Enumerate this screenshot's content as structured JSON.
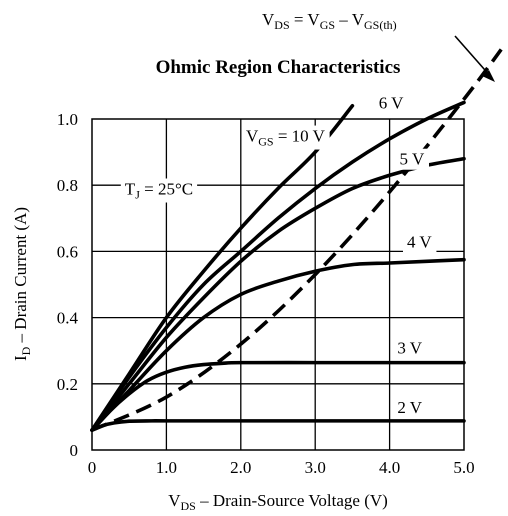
{
  "chart_data": {
    "type": "line",
    "title": "Ohmic Region Characteristics",
    "xlabel": "VDS – Drain-Source Voltage (V)",
    "ylabel": "ID – Drain Current (A)",
    "xlim": [
      0,
      5
    ],
    "ylim": [
      0,
      1.0
    ],
    "x_ticks": [
      "0",
      "1.0",
      "2.0",
      "3.0",
      "4.0",
      "5.0"
    ],
    "y_ticks": [
      "0",
      "0.2",
      "0.4",
      "0.6",
      "0.8",
      "1.0"
    ],
    "grid": true,
    "series": [
      {
        "name": "VGS = 10 V",
        "x": [
          0,
          0.5,
          1.0,
          1.5,
          2.0,
          2.5,
          3.0,
          3.5
        ],
        "y": [
          0.06,
          0.23,
          0.4,
          0.54,
          0.67,
          0.79,
          0.9,
          1.04
        ]
      },
      {
        "name": "6 V",
        "x": [
          0,
          0.5,
          1.0,
          1.5,
          2.0,
          2.5,
          3.0,
          3.5,
          4.0,
          4.5,
          5.0
        ],
        "y": [
          0.06,
          0.22,
          0.37,
          0.5,
          0.6,
          0.7,
          0.79,
          0.87,
          0.94,
          1.0,
          1.05
        ]
      },
      {
        "name": "5 V",
        "x": [
          0,
          0.5,
          1.0,
          1.5,
          2.0,
          2.5,
          3.0,
          3.5,
          4.0,
          4.5,
          5.0
        ],
        "y": [
          0.06,
          0.2,
          0.34,
          0.46,
          0.57,
          0.66,
          0.73,
          0.79,
          0.83,
          0.86,
          0.88
        ]
      },
      {
        "name": "4 V",
        "x": [
          0,
          0.5,
          1.0,
          1.5,
          2.0,
          2.5,
          3.0,
          3.5,
          4.0,
          4.5,
          5.0
        ],
        "y": [
          0.06,
          0.18,
          0.3,
          0.4,
          0.47,
          0.51,
          0.54,
          0.56,
          0.565,
          0.57,
          0.575
        ]
      },
      {
        "name": "3 V",
        "x": [
          0,
          0.25,
          0.5,
          0.75,
          1.0,
          1.25,
          1.5,
          1.75,
          2.0,
          3.0,
          4.0,
          5.0
        ],
        "y": [
          0.06,
          0.12,
          0.17,
          0.21,
          0.235,
          0.25,
          0.258,
          0.262,
          0.264,
          0.264,
          0.264,
          0.264
        ]
      },
      {
        "name": "2 V",
        "x": [
          0,
          0.15,
          0.3,
          0.5,
          0.8,
          1.0,
          2.0,
          3.0,
          4.0,
          5.0
        ],
        "y": [
          0.06,
          0.074,
          0.082,
          0.087,
          0.088,
          0.088,
          0.088,
          0.088,
          0.088,
          0.088
        ]
      }
    ],
    "boundary": {
      "name": "VDS = VGS – VGS(th)",
      "style": "dashed",
      "x": [
        0,
        1.0,
        2.0,
        3.0,
        4.0,
        5.0,
        5.5
      ],
      "y": [
        0.06,
        0.16,
        0.32,
        0.53,
        0.78,
        1.06,
        1.21
      ]
    },
    "annotations": [
      {
        "text": "6 V",
        "x": 4.02,
        "y": 1.05
      },
      {
        "text": "VGS = 10 V",
        "x": 2.6,
        "y": 0.95
      },
      {
        "text": "5 V",
        "x": 4.3,
        "y": 0.88
      },
      {
        "text": "TJ = 25°C",
        "x": 0.9,
        "y": 0.79
      },
      {
        "text": "4 V",
        "x": 4.4,
        "y": 0.63
      },
      {
        "text": "3 V",
        "x": 4.27,
        "y": 0.31
      },
      {
        "text": "2 V",
        "x": 4.27,
        "y": 0.13
      }
    ]
  }
}
